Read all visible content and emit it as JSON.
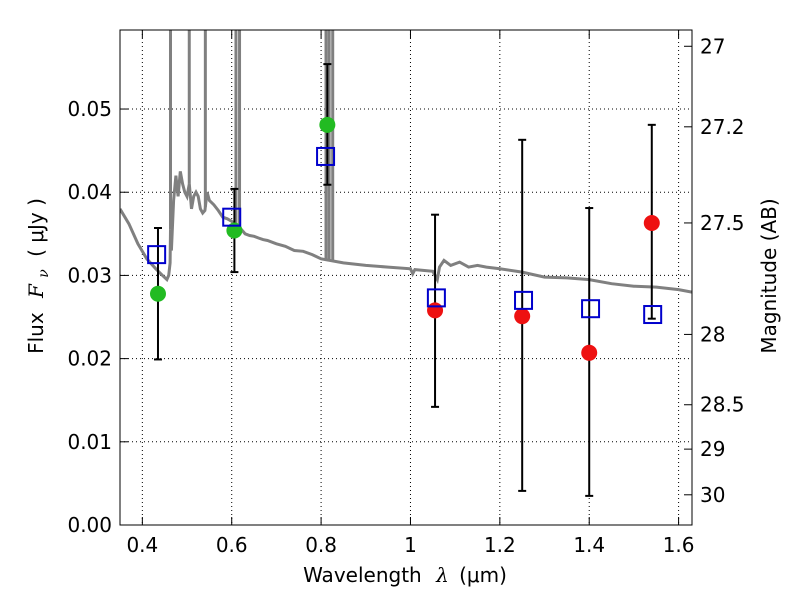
{
  "chart_data": {
    "type": "scatter",
    "xlabel": "Wavelength",
    "xlabel_symbol": "λ",
    "xlabel_unit": "(μm)",
    "ylabel": "Flux",
    "ylabel_symbol": "F",
    "ylabel_sub": "ν",
    "ylabel_unit": "( μJy )",
    "y2label": "Magnitude (AB)",
    "xlim": [
      0.35,
      1.63
    ],
    "ylim": [
      0.0,
      0.0595
    ],
    "grid": true,
    "x_ticks": [
      0.4,
      0.6,
      0.8,
      1.0,
      1.2,
      1.4,
      1.6
    ],
    "x_tick_labels": [
      "0.4",
      "0.6",
      "0.8",
      "1",
      "1.2",
      "1.4",
      "1.6"
    ],
    "y_ticks": [
      0.0,
      0.01,
      0.02,
      0.03,
      0.04,
      0.05
    ],
    "y_tick_labels": [
      "0.00",
      "0.01",
      "0.02",
      "0.03",
      "0.04",
      "0.05"
    ],
    "y2_ticks": [
      27,
      27.2,
      27.5,
      28,
      28.5,
      29,
      30
    ],
    "y2_tick_labels": [
      "27",
      "27.2",
      "27.5",
      "28",
      "28.5",
      "29",
      "30"
    ],
    "observed": {
      "x": [
        0.435,
        0.606,
        0.814,
        1.055,
        1.25,
        1.4,
        1.54
      ],
      "y": [
        0.0278,
        0.0354,
        0.0481,
        0.0258,
        0.0251,
        0.0207,
        0.0363
      ],
      "yerr_low": [
        0.0199,
        0.0304,
        0.0409,
        0.0142,
        0.0041,
        0.0035,
        0.0248
      ],
      "yerr_high": [
        0.0357,
        0.0404,
        0.0554,
        0.0373,
        0.0463,
        0.0381,
        0.0481
      ],
      "colors": [
        "#22bb22",
        "#22bb22",
        "#22bb22",
        "#ee1111",
        "#ee1111",
        "#ee1111",
        "#ee1111"
      ]
    },
    "model": {
      "x": [
        0.432,
        0.6,
        0.81,
        1.058,
        1.253,
        1.403,
        1.542
      ],
      "y": [
        0.0325,
        0.037,
        0.0443,
        0.0273,
        0.027,
        0.026,
        0.0253
      ],
      "color": "#0000cc"
    },
    "spectrum": {
      "color": "#808080",
      "x": [
        0.35,
        0.37,
        0.39,
        0.41,
        0.43,
        0.445,
        0.455,
        0.459,
        0.462,
        0.463,
        0.465,
        0.47,
        0.475,
        0.48,
        0.485,
        0.49,
        0.495,
        0.5,
        0.505,
        0.51,
        0.515,
        0.52,
        0.525,
        0.53,
        0.535,
        0.54,
        0.545,
        0.55,
        0.56,
        0.57,
        0.58,
        0.59,
        0.6,
        0.61,
        0.62,
        0.625,
        0.63,
        0.64,
        0.65,
        0.66,
        0.67,
        0.68,
        0.7,
        0.72,
        0.74,
        0.76,
        0.78,
        0.8,
        0.85,
        0.9,
        0.95,
        1.0,
        1.005,
        1.01,
        1.05,
        1.06,
        1.065,
        1.075,
        1.09,
        1.11,
        1.13,
        1.15,
        1.17,
        1.2,
        1.25,
        1.3,
        1.35,
        1.4,
        1.45,
        1.5,
        1.55,
        1.6,
        1.63
      ],
      "y": [
        0.038,
        0.0362,
        0.0338,
        0.032,
        0.0308,
        0.03,
        0.0295,
        0.03,
        0.0315,
        0.0355,
        0.033,
        0.039,
        0.042,
        0.0395,
        0.0425,
        0.041,
        0.04,
        0.0395,
        0.041,
        0.038,
        0.0395,
        0.04,
        0.0395,
        0.038,
        0.0375,
        0.0378,
        0.04,
        0.039,
        0.0385,
        0.0378,
        0.037,
        0.0368,
        0.0365,
        0.036,
        0.0356,
        0.0353,
        0.035,
        0.0348,
        0.0347,
        0.0345,
        0.0343,
        0.0342,
        0.0338,
        0.0335,
        0.033,
        0.0329,
        0.0325,
        0.032,
        0.0315,
        0.0312,
        0.031,
        0.0308,
        0.0302,
        0.0307,
        0.0305,
        0.0295,
        0.031,
        0.0318,
        0.0312,
        0.0316,
        0.031,
        0.0312,
        0.031,
        0.0308,
        0.0304,
        0.0298,
        0.0297,
        0.0295,
        0.029,
        0.0287,
        0.0286,
        0.0283,
        0.028
      ]
    },
    "emission_lines": [
      0.463,
      0.505,
      0.541,
      0.6095,
      0.6175,
      0.811,
      0.818,
      0.826
    ]
  }
}
